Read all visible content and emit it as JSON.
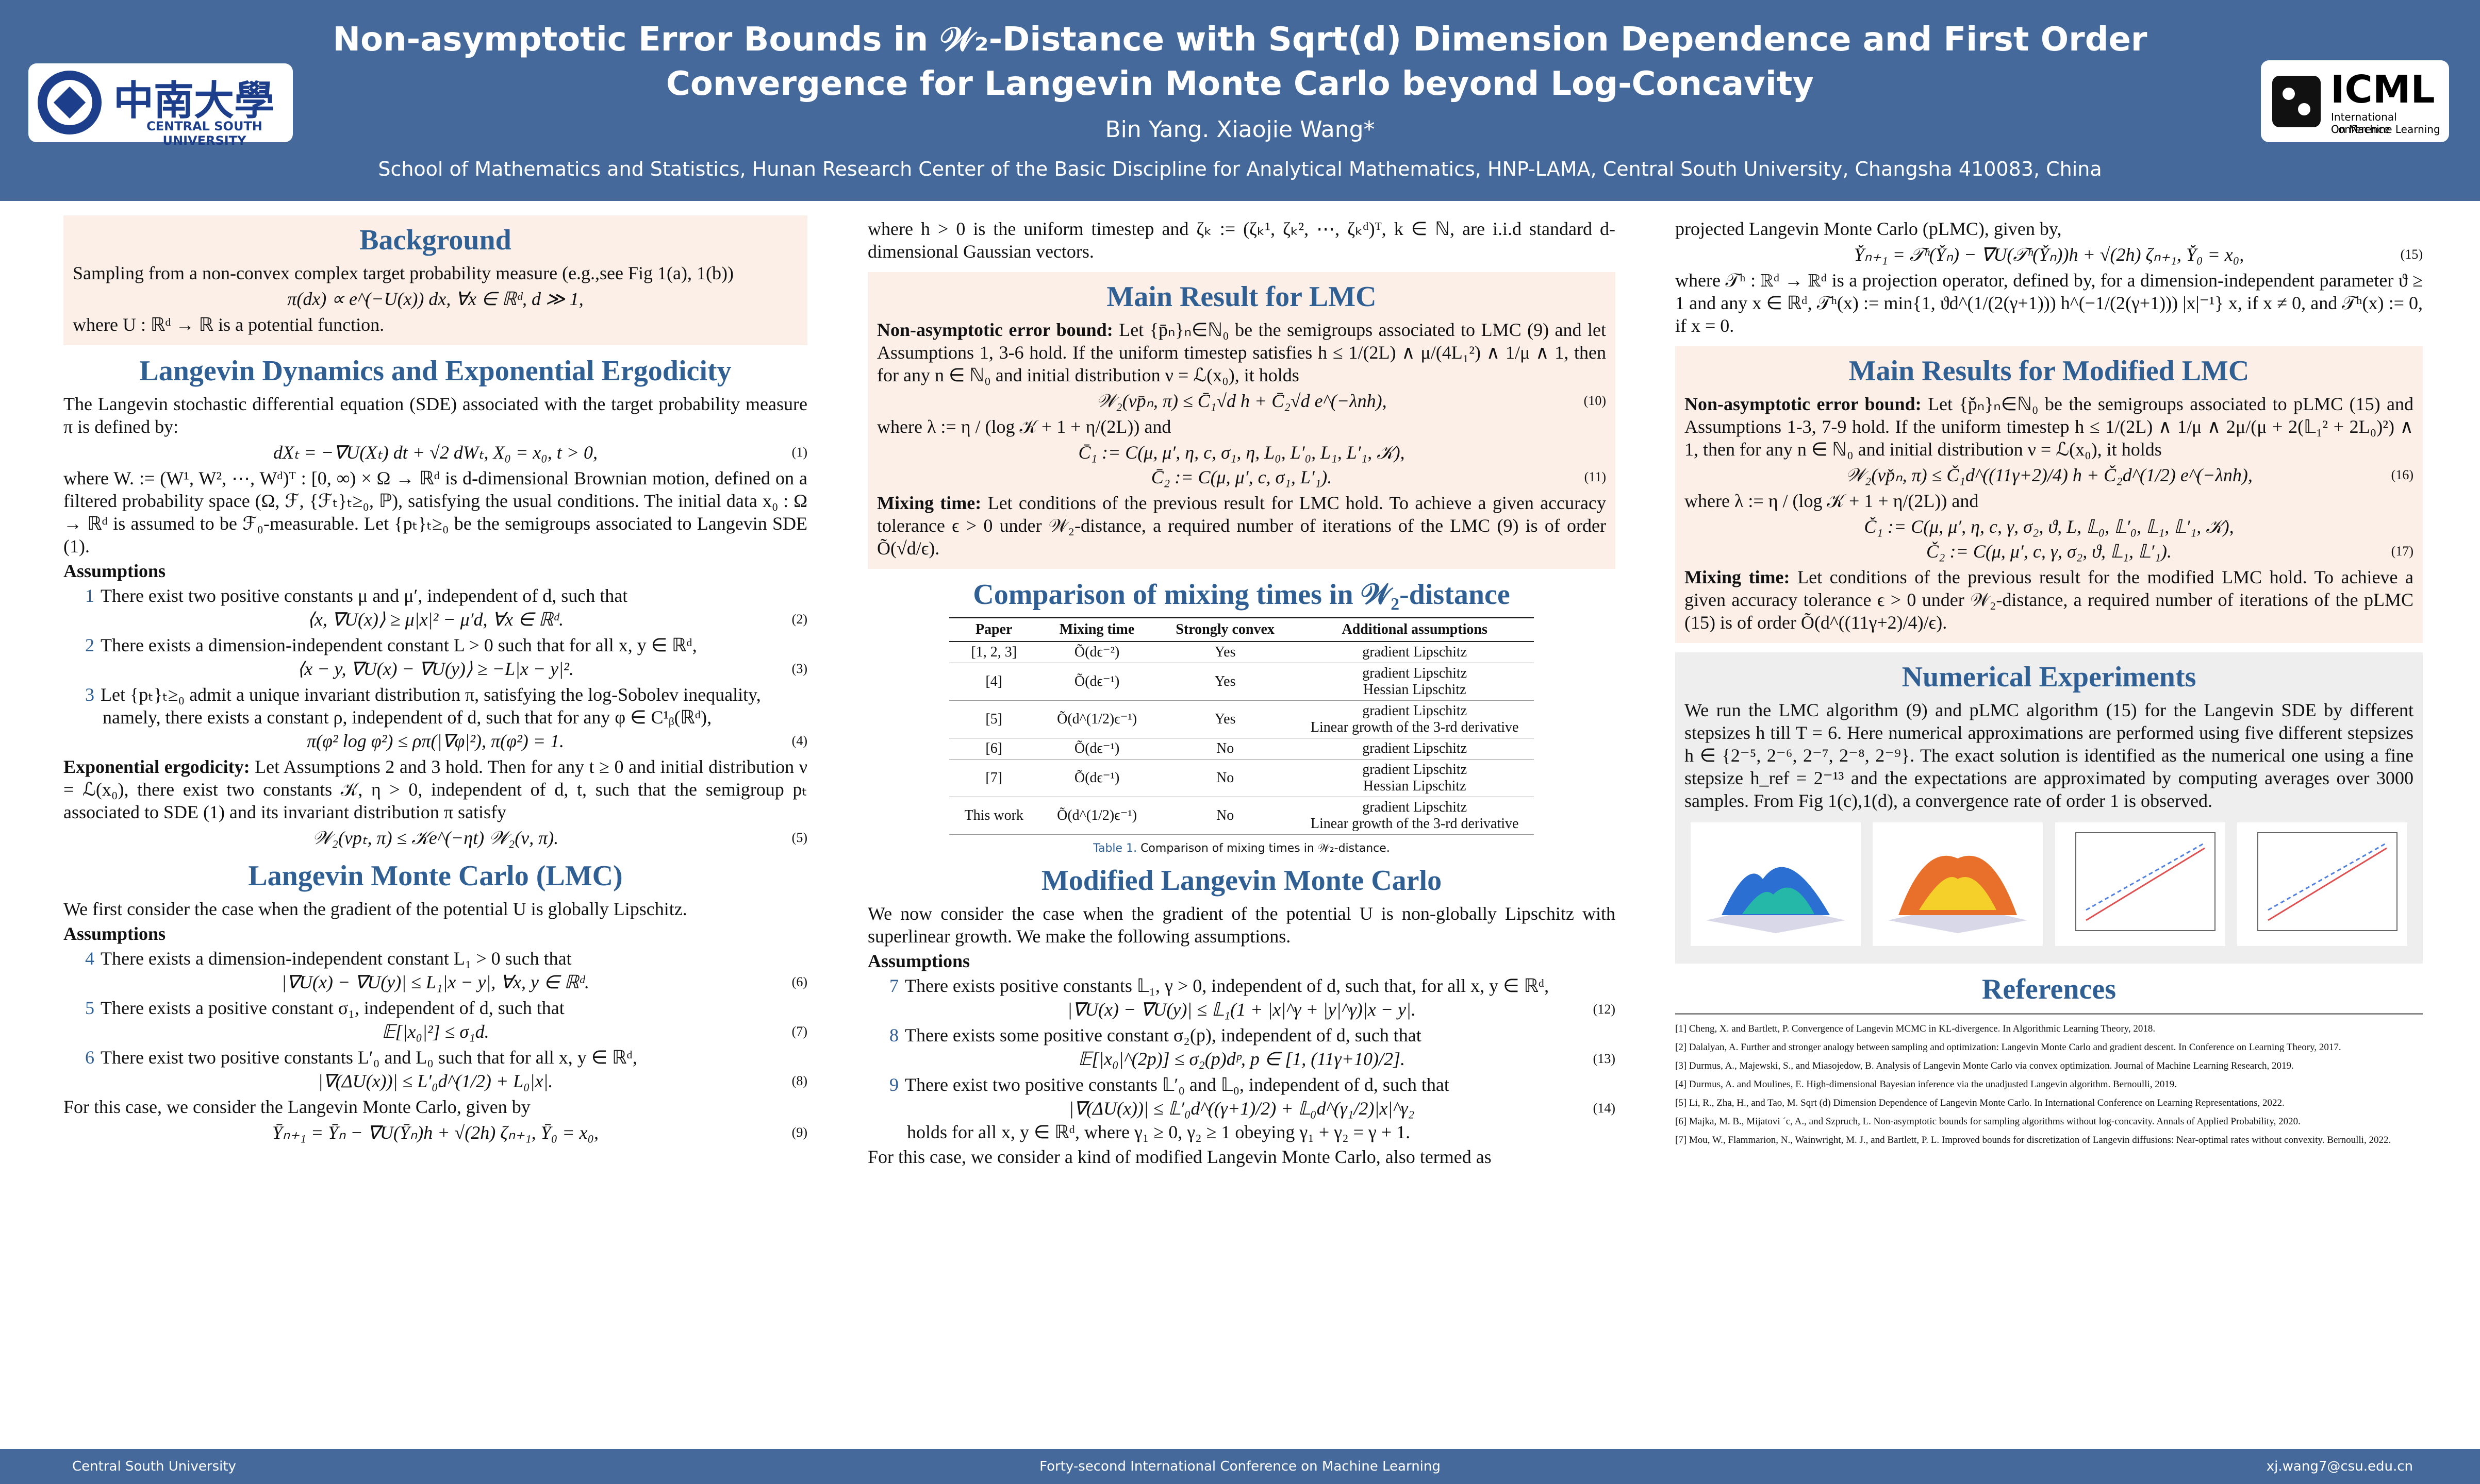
{
  "header": {
    "title_line1": "Non-asymptotic Error Bounds in 𝒲₂-Distance with Sqrt(d) Dimension Dependence and First Order",
    "title_line2": "Convergence for Langevin Monte Carlo beyond Log-Concavity",
    "authors": "Bin Yang. Xiaojie Wang*",
    "affiliation": "School of Mathematics and Statistics, Hunan Research Center of the Basic Discipline for Analytical Mathematics, HNP-LAMA, Central South University, Changsha 410083, China"
  },
  "logos": {
    "left_name": "中南大學",
    "left_sub": "CENTRAL SOUTH UNIVERSITY",
    "right_name": "ICML",
    "right_sub1": "International Conference",
    "right_sub2": "On Machine Learning"
  },
  "columns": [
    [
      {
        "heading": "Background",
        "blocks": [
          {
            "text": "Sampling from a non-convex complex target probability measure (e.g.,see Fig 1(a), 1(b))"
          },
          {
            "eq": "π(dx) ∝ e^(−U(x)) dx,    ∀x ∈ ℝᵈ,    d ≫ 1,"
          },
          {
            "text": "where U : ℝᵈ → ℝ is a potential function."
          }
        ]
      },
      {
        "heading": "Langevin Dynamics and Exponential Ergodicity",
        "blocks": [
          {
            "text": "The Langevin stochastic differential equation (SDE) associated with the target probability measure π is defined by:"
          },
          {
            "eq": "dXₜ = −∇U(Xₜ) dt + √2 dWₜ,    X₀ = x₀, t > 0,",
            "num": "(1)"
          },
          {
            "text": "where W. := (W¹, W², ⋯, Wᵈ)ᵀ : [0, ∞) × Ω → ℝᵈ is d-dimensional Brownian motion, defined on a filtered probability space (Ω, ℱ, {ℱₜ}ₜ≥₀, ℙ), satisfying the usual conditions. The initial data x₀ : Ω → ℝᵈ is assumed to be ℱ₀-measurable. Let {pₜ}ₜ≥₀ be the semigroups associated to Langevin SDE (1)."
          },
          {
            "sub": "Assumptions"
          },
          {
            "item": "1",
            "text": "There exist two positive constants μ and μ′, independent of d, such that"
          },
          {
            "eq": "⟨x, ∇U(x)⟩ ≥ μ|x|² − μ′d,    ∀x ∈ ℝᵈ.",
            "num": "(2)"
          },
          {
            "item": "2",
            "text": "There exists a dimension-independent constant L > 0 such that for all x, y ∈ ℝᵈ,"
          },
          {
            "eq": "⟨x − y, ∇U(x) − ∇U(y)⟩ ≥ −L|x − y|².",
            "num": "(3)"
          },
          {
            "item": "3",
            "text": "Let {pₜ}ₜ≥₀ admit a unique invariant distribution π, satisfying the log-Sobolev inequality, namely, there exists a constant ρ, independent of d, such that for any φ ∈ C¹ᵦ(ℝᵈ),"
          },
          {
            "eq": "π(φ² log φ²) ≤ ρπ(|∇φ|²),    π(φ²) = 1.",
            "num": "(4)"
          },
          {
            "lead": "Exponential ergodicity:",
            "text": "Let Assumptions 2 and 3 hold. Then for any t ≥ 0 and initial distribution ν = ℒ(x₀), there exist two constants 𝒦, η > 0, independent of d, t, such that the semigroup pₜ associated to SDE (1) and its invariant distribution π satisfy"
          },
          {
            "eq": "𝒲₂(νpₜ, π) ≤ 𝒦e^(−ηt) 𝒲₂(ν, π).",
            "num": "(5)"
          }
        ]
      },
      {
        "heading": "Langevin Monte Carlo (LMC)",
        "blocks": [
          {
            "text": "We first consider the case when the gradient of the potential U is globally Lipschitz."
          },
          {
            "sub": "Assumptions"
          },
          {
            "item": "4",
            "text": "There exists a dimension-independent constant L₁ > 0 such that"
          },
          {
            "eq": "|∇U(x) − ∇U(y)| ≤ L₁|x − y|,    ∀x, y ∈ ℝᵈ.",
            "num": "(6)"
          },
          {
            "item": "5",
            "text": "There exists a positive constant σ₁, independent of d, such that"
          },
          {
            "eq": "𝔼[|x₀|²] ≤ σ₁d.",
            "num": "(7)"
          },
          {
            "item": "6",
            "text": "There exist two positive constants L′₀ and L₀ such that for all x, y ∈ ℝᵈ,"
          },
          {
            "eq": "|∇(ΔU(x))| ≤ L′₀d^(1/2) + L₀|x|.",
            "num": "(8)"
          },
          {
            "text": "For this case, we consider the Langevin Monte Carlo, given by"
          },
          {
            "eq": "Ȳₙ₊₁ = Ȳₙ − ∇U(Ȳₙ)h + √(2h) ζₙ₊₁,    Ȳ₀ = x₀,",
            "num": "(9)"
          }
        ]
      }
    ],
    [
      {
        "blocks": [
          {
            "text": "where h > 0 is the uniform timestep and ζₖ := (ζₖ¹, ζₖ², ⋯, ζₖᵈ)ᵀ, k ∈ ℕ, are i.i.d standard d-dimensional Gaussian vectors."
          }
        ]
      },
      {
        "heading": "Main Result for LMC",
        "blocks": [
          {
            "lead": "Non-asymptotic error bound:",
            "text": "Let {p̄ₙ}ₙ∈ℕ₀ be the semigroups associated to LMC (9) and let Assumptions 1, 3-6 hold. If the uniform timestep satisfies h ≤ 1/(2L) ∧ μ/(4L₁²) ∧ 1/μ ∧ 1, then for any n ∈ ℕ₀ and initial distribution ν = ℒ(x₀), it holds"
          },
          {
            "eq": "𝒲₂(νp̄ₙ, π) ≤ C̄₁√d h + C̄₂√d e^(−λnh),",
            "num": "(10)"
          },
          {
            "text": "where λ := η / (log 𝒦 + 1 + η/(2L)) and"
          },
          {
            "eq": "C̄₁ := C(μ, μ′, η, c, σ₁, η, L₀, L′₀, L₁, L′₁, 𝒦),"
          },
          {
            "eq": "C̄₂ := C(μ, μ′, c, σ₁, L′₁).",
            "num": "(11)"
          },
          {
            "lead": "Mixing time:",
            "text": "Let conditions of the previous result for LMC hold. To achieve a given accuracy tolerance ϵ > 0 under 𝒲₂-distance, a required number of iterations of the LMC (9) is of order Õ(√d/ϵ)."
          }
        ]
      },
      {
        "heading": "Comparison of mixing times in 𝒲₂-distance",
        "blocks": [
          {
            "table": {
              "header": [
                "Paper",
                "Mixing time",
                "Strongly convex",
                "Additional assumptions"
              ],
              "rows": [
                [
                  [
                    "[1, 2, 3]"
                  ],
                  [
                    "Õ(dϵ⁻²)"
                  ],
                  [
                    "Yes"
                  ],
                  [
                    "gradient Lipschitz"
                  ]
                ],
                [
                  [
                    "[4]"
                  ],
                  [
                    "Õ(dϵ⁻¹)"
                  ],
                  [
                    "Yes"
                  ],
                  [
                    "gradient Lipschitz",
                    "Hessian Lipschitz"
                  ]
                ],
                [
                  [
                    "[5]"
                  ],
                  [
                    "Õ(d^(1/2)ϵ⁻¹)"
                  ],
                  [
                    "Yes"
                  ],
                  [
                    "gradient Lipschitz",
                    "Linear growth of the 3-rd derivative"
                  ]
                ],
                [
                  [
                    "[6]"
                  ],
                  [
                    "Õ(dϵ⁻¹)"
                  ],
                  [
                    "No"
                  ],
                  [
                    "gradient Lipschitz"
                  ]
                ],
                [
                  [
                    "[7]"
                  ],
                  [
                    "Õ(dϵ⁻¹)"
                  ],
                  [
                    "No"
                  ],
                  [
                    "gradient Lipschitz",
                    "Hessian Lipschitz"
                  ]
                ],
                [
                  [
                    "This work"
                  ],
                  [
                    "Õ(d^(1/2)ϵ⁻¹)"
                  ],
                  [
                    "No"
                  ],
                  [
                    "gradient Lipschitz",
                    "Linear growth of the 3-rd derivative"
                  ]
                ]
              ],
              "caption_label": "Table 1.",
              "caption": "Comparison of mixing times in 𝒲₂-distance."
            }
          }
        ]
      },
      {
        "heading": "Modified Langevin Monte Carlo",
        "blocks": [
          {
            "text": "We now consider the case when the gradient of the potential U is non-globally Lipschitz with superlinear growth. We make the following assumptions."
          },
          {
            "sub": "Assumptions"
          },
          {
            "item": "7",
            "text": "There exists positive constants 𝕃₁, γ > 0, independent of d, such that, for all x, y ∈ ℝᵈ,"
          },
          {
            "eq": "|∇U(x) − ∇U(y)| ≤ 𝕃₁(1 + |x|^γ + |y|^γ)|x − y|.",
            "num": "(12)"
          },
          {
            "item": "8",
            "text": "There exists some positive constant σ₂(p), independent of d, such that"
          },
          {
            "eq": "𝔼[|x₀|^(2p)] ≤ σ₂(p)dᵖ,    p ∈ [1, (11γ+10)/2].",
            "num": "(13)"
          },
          {
            "item": "9",
            "text": "There exist two positive constants 𝕃′₀ and 𝕃₀, independent of d, such that"
          },
          {
            "eq": "|∇(ΔU(x))| ≤ 𝕃′₀d^((γ+1)/2) + 𝕃₀d^(γ₁/2)|x|^γ₂",
            "num": "(14)"
          },
          {
            "cont": "holds for all x, y ∈ ℝᵈ, where γ₁ ≥ 0, γ₂ ≥ 1 obeying γ₁ + γ₂ = γ + 1."
          },
          {
            "text": "For this case, we consider a kind of modified Langevin Monte Carlo, also termed as"
          }
        ]
      }
    ],
    [
      {
        "blocks": [
          {
            "text": "projected Langevin Monte Carlo (pLMC), given by,"
          },
          {
            "eq": "Y̌ₙ₊₁ = 𝒯ʰ(Y̌ₙ) − ∇U(𝒯ʰ(Y̌ₙ))h + √(2h) ζₙ₊₁,    Y̌₀ = x₀,",
            "num": "(15)"
          },
          {
            "text": "where 𝒯ʰ : ℝᵈ → ℝᵈ is a projection operator, defined by, for a dimension-independent parameter ϑ ≥ 1 and any x ∈ ℝᵈ, 𝒯ʰ(x) := min{1, ϑd^(1/(2(γ+1))) h^(−1/(2(γ+1))) |x|⁻¹} x, if x ≠ 0, and 𝒯ʰ(x) := 0, if x = 0."
          }
        ]
      },
      {
        "heading": "Main Results for Modified LMC",
        "blocks": [
          {
            "lead": "Non-asymptotic error bound:",
            "text": "Let {p̌ₙ}ₙ∈ℕ₀ be the semigroups associated to pLMC (15) and Assumptions 1-3, 7-9 hold. If the uniform timestep h ≤ 1/(2L) ∧ 1/μ ∧ 2μ/(μ + 2(𝕃₁² + 2L₀)²) ∧ 1, then for any n ∈ ℕ₀ and initial distribution ν = ℒ(x₀), it holds"
          },
          {
            "eq": "𝒲₂(νp̌ₙ, π) ≤ Č₁d^((11γ+2)/4) h + Č₂d^(1/2) e^(−λnh),",
            "num": "(16)"
          },
          {
            "text": "where λ := η / (log 𝒦 + 1 + η/(2L)) and"
          },
          {
            "eq": "Č₁ := C(μ, μ′, η, c, γ, σ₂, ϑ, L, 𝕃₀, 𝕃′₀, 𝕃₁, 𝕃′₁, 𝒦),"
          },
          {
            "eq": "Č₂ := C(μ, μ′, c, γ, σ₂, ϑ, 𝕃₁, 𝕃′₁).",
            "num": "(17)"
          },
          {
            "lead": "Mixing time:",
            "text": "Let conditions of the previous result for the modified LMC hold. To achieve a given accuracy tolerance ϵ > 0 under 𝒲₂-distance, a required number of iterations of the pLMC (15) is of order Õ(d^((11γ+2)/4)/ϵ)."
          }
        ]
      },
      {
        "heading": "Numerical Experiments",
        "blocks": [
          {
            "text": "We run the LMC algorithm (9) and pLMC algorithm (15) for the Langevin SDE by different stepsizes h till T = 6. Here numerical approximations are performed using five different stepsizes h ∈ {2⁻⁵, 2⁻⁶, 2⁻⁷, 2⁻⁸, 2⁻⁹}. The exact solution is identified as the numerical one using a fine stepsize h_ref = 2⁻¹³ and the expectations are approximated by computing averages over 3000 samples. From Fig 1(c),1(d), a convergence rate of order 1 is observed."
          }
        ]
      },
      {
        "heading": "References",
        "blocks": [
          {
            "ref": "[1] Cheng, X. and Bartlett, P. Convergence of Langevin MCMC in KL-divergence. In Algorithmic Learning Theory, 2018."
          },
          {
            "ref": "[2] Dalalyan, A. Further and stronger analogy between sampling and optimization: Langevin Monte Carlo and gradient descent. In Conference on Learning Theory, 2017."
          },
          {
            "ref": "[3] Durmus, A., Majewski, S., and Miasojedow, B. Analysis of Langevin Monte Carlo via convex optimization. Journal of Machine Learning Research, 2019."
          },
          {
            "ref": "[4] Durmus, A. and Moulines, E. High-dimensional Bayesian inference via the unadjusted Langevin algorithm. Bernoulli, 2019."
          },
          {
            "ref": "[5] Li, R., Zha, H., and Tao, M. Sqrt (d) Dimension Dependence of Langevin Monte Carlo. In International Conference on Learning Representations, 2022."
          },
          {
            "ref": "[6] Majka, M. B., Mijatovi ´c, A., and Szpruch, L. Non-asymptotic bounds for sampling algorithms without log-concavity. Annals of Applied Probability, 2020."
          },
          {
            "ref": "[7] Mou, W., Flammarion, N., Wainwright, M. J., and Bartlett, P. L. Improved bounds for discretization of Langevin diffusions: Near-optimal rates without convexity. Bernoulli, 2022."
          }
        ]
      }
    ]
  ],
  "footer": {
    "left": "Central South University",
    "center": "Forty-second International Conference on Machine Learning",
    "right": "xj.wang7@csu.edu.cn"
  }
}
